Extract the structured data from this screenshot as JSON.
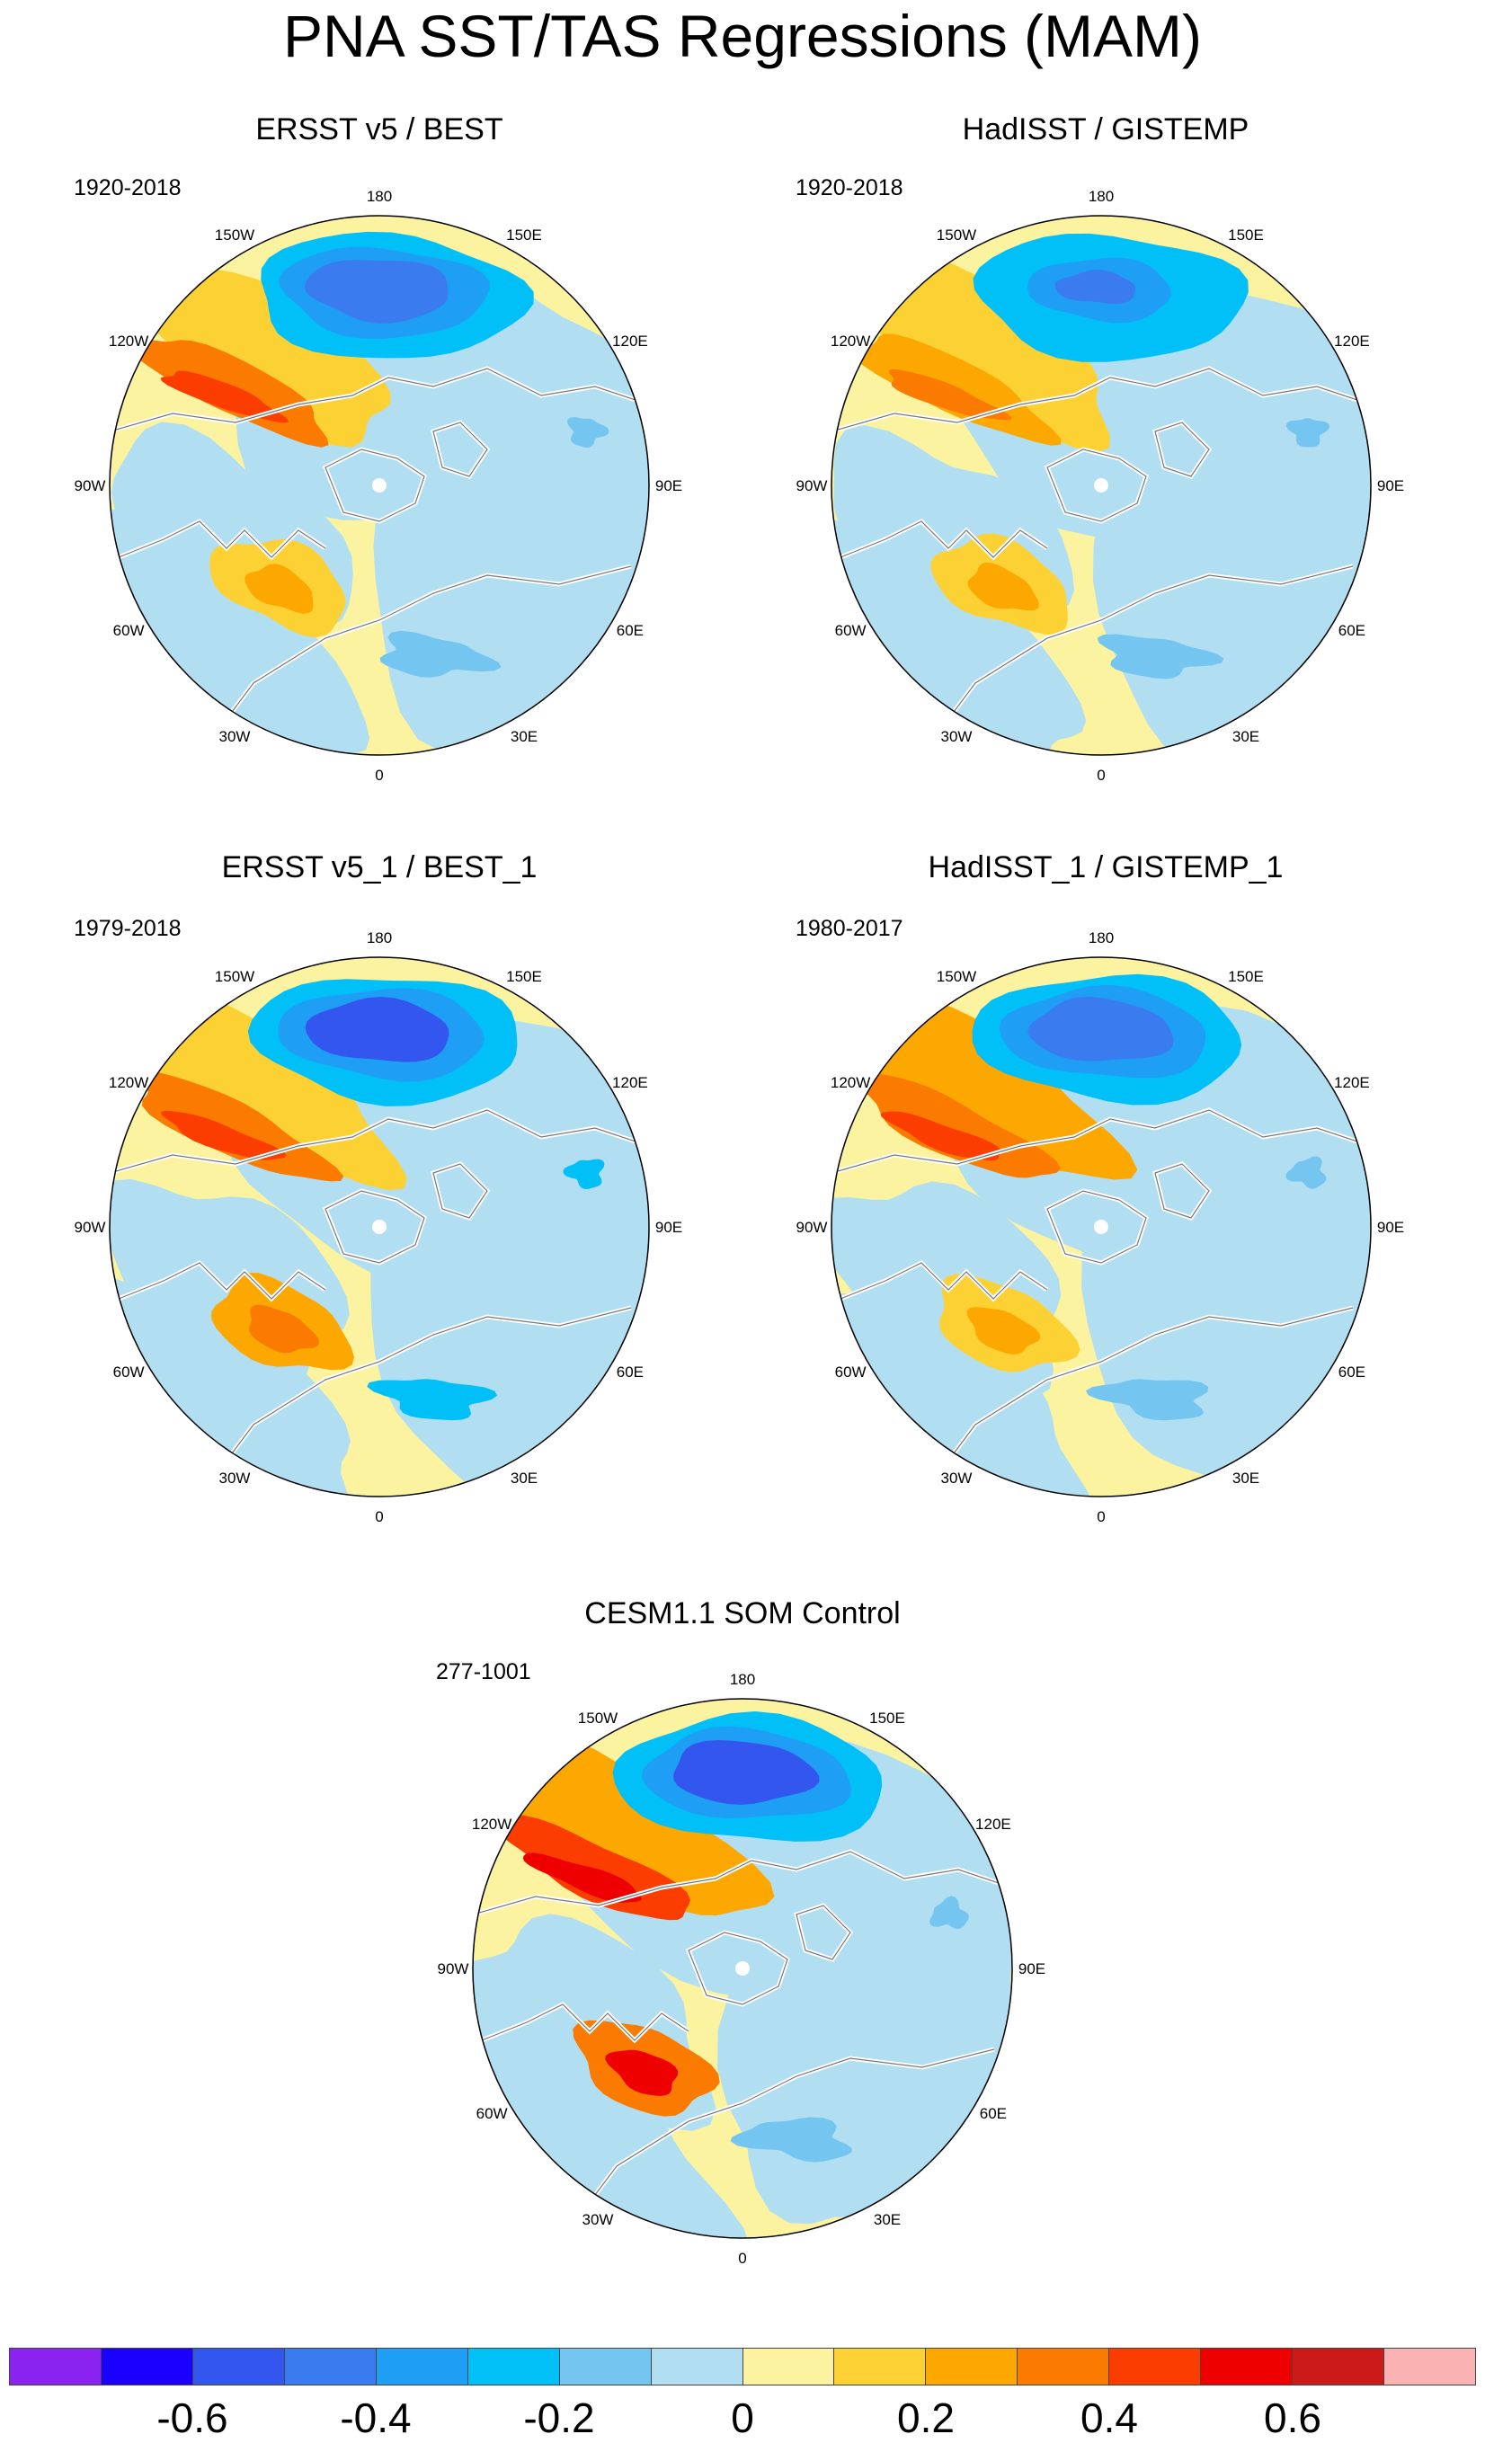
{
  "title": "PNA SST/TAS Regressions (MAM)",
  "colors": {
    "levels": [
      "#8a22f0",
      "#1a00ff",
      "#3356ee",
      "#3a7cf0",
      "#1e9ff5",
      "#00c0f7",
      "#74c6f0",
      "#b2def2",
      "#fbf3a0",
      "#fcd133",
      "#fca800",
      "#fb7a00",
      "#fc3d00",
      "#ee0000",
      "#cc1a1a",
      "#fbb2b2"
    ],
    "land_outline": "#ffffff",
    "coast_outline": "#777777"
  },
  "panels": [
    {
      "id": "p1",
      "title": "ERSST v5 / BEST",
      "period": "1920-2018",
      "warm_pac": 0.42,
      "cold_pac": -0.5,
      "warm_atl": 0.28,
      "cold_atl": -0.18
    },
    {
      "id": "p2",
      "title": "HadISST / GISTEMP",
      "period": "1920-2018",
      "warm_pac": 0.32,
      "cold_pac": -0.45,
      "warm_atl": 0.26,
      "cold_atl": -0.2
    },
    {
      "id": "p3",
      "title": "ERSST v5_1 / BEST_1",
      "period": "1979-2018",
      "warm_pac": 0.42,
      "cold_pac": -0.6,
      "warm_atl": 0.32,
      "cold_atl": -0.22
    },
    {
      "id": "p4",
      "title": "HadISST_1 / GISTEMP_1",
      "period": "1980-2017",
      "warm_pac": 0.45,
      "cold_pac": -0.5,
      "warm_atl": 0.28,
      "cold_atl": -0.2
    },
    {
      "id": "p5",
      "title": "CESM1.1 SOM Control",
      "period": "277-1001",
      "warm_pac": 0.6,
      "cold_pac": -0.6,
      "warm_atl": 0.5,
      "cold_atl": -0.12
    }
  ],
  "longitude_labels": [
    "180",
    "150E",
    "120E",
    "90E",
    "60E",
    "30E",
    "0",
    "30W",
    "60W",
    "90W",
    "120W",
    "150W"
  ],
  "colorbar": {
    "labels": [
      "-0.6",
      "-0.4",
      "-0.2",
      "0",
      "0.2",
      "0.4",
      "0.6"
    ],
    "label_values": [
      -0.6,
      -0.4,
      -0.2,
      0,
      0.2,
      0.4,
      0.6
    ],
    "min": -0.8,
    "max": 0.8
  }
}
